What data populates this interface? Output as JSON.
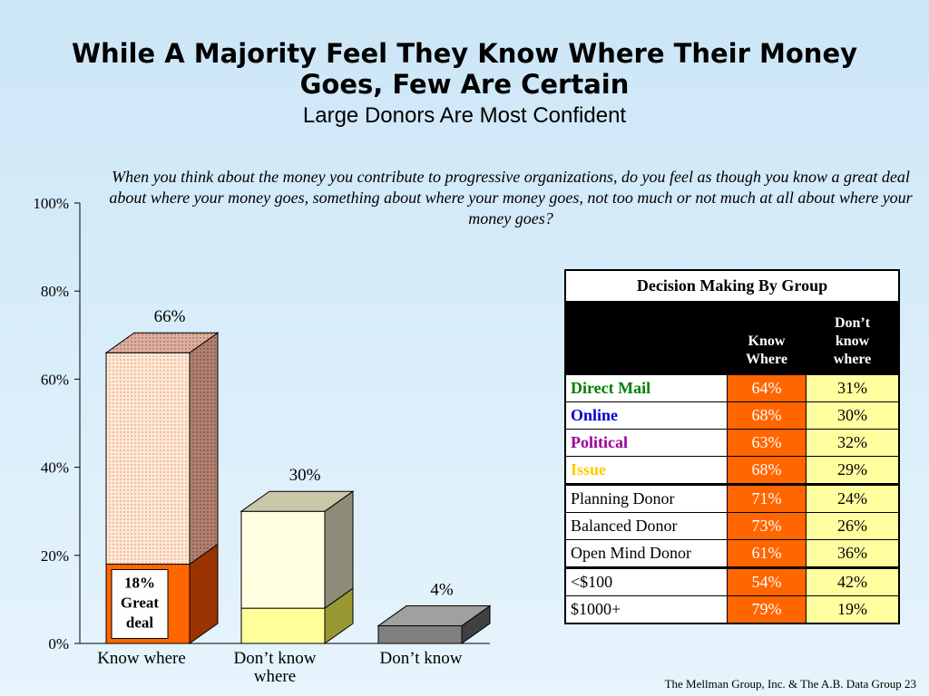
{
  "header": {
    "title_line1": "While A Majority Feel They Know Where Their Money",
    "title_line2": "Goes, Few Are Certain",
    "subtitle": "Large Donors Are Most Confident"
  },
  "question": "When you think about the money you contribute to progressive organizations, do you feel as though you know a great deal about where your money goes, something about where your money goes, not too much or not much at all about where your money goes?",
  "chart_data": {
    "type": "bar",
    "categories": [
      "Know where",
      "Don’t know where",
      "Don’t know"
    ],
    "category_lines": [
      [
        "Know where"
      ],
      [
        "Don’t know",
        "where"
      ],
      [
        "Don’t know"
      ]
    ],
    "total_labels": [
      "66%",
      "30%",
      "4%"
    ],
    "series": [
      {
        "values": [
          18,
          8,
          4
        ],
        "colors": [
          "#ff6600",
          "#ffff99",
          "#808080"
        ],
        "side_colors": [
          "#993300",
          "#999933",
          "#404040"
        ],
        "top_colors": [
          "#ff6600",
          "#ffff99",
          "#a0a0a0"
        ]
      },
      {
        "values": [
          48,
          22,
          0
        ],
        "colors": [
          "#ffe4cc",
          "#ffffe0",
          "#808080"
        ],
        "side_colors": [
          "#b07860",
          "#8c8c78",
          "#404040"
        ],
        "top_colors": [
          "#d8a890",
          "#c8c8a8",
          "#a0a0a0"
        ]
      }
    ],
    "inner_label": [
      "18%",
      "Great",
      "deal"
    ],
    "yticks": [
      "0%",
      "20%",
      "40%",
      "60%",
      "80%",
      "100%"
    ],
    "ylim": [
      0,
      100
    ],
    "grid": false
  },
  "table": {
    "title": "Decision Making By Group",
    "col1": "Know Where",
    "col1_lines": [
      "Know",
      "Where"
    ],
    "col2_lines": [
      "Don’t",
      "know",
      "where"
    ],
    "rows": [
      {
        "label": "Direct Mail",
        "color": "#008000",
        "bold": true,
        "know": "64%",
        "dontknow": "31%",
        "sep": false
      },
      {
        "label": "Online",
        "color": "#0000cc",
        "bold": true,
        "know": "68%",
        "dontknow": "30%",
        "sep": false
      },
      {
        "label": "Political",
        "color": "#990099",
        "bold": true,
        "know": "63%",
        "dontknow": "32%",
        "sep": false
      },
      {
        "label": "Issue",
        "color": "#ffcc00",
        "bold": true,
        "know": "68%",
        "dontknow": "29%",
        "sep": false
      },
      {
        "label": "Planning Donor",
        "color": "#000000",
        "bold": false,
        "know": "71%",
        "dontknow": "24%",
        "sep": true
      },
      {
        "label": "Balanced Donor",
        "color": "#000000",
        "bold": false,
        "know": "73%",
        "dontknow": "26%",
        "sep": false
      },
      {
        "label": "Open Mind Donor",
        "color": "#000000",
        "bold": false,
        "know": "61%",
        "dontknow": "36%",
        "sep": false
      },
      {
        "label": "<$100",
        "color": "#000000",
        "bold": false,
        "know": "54%",
        "dontknow": "42%",
        "sep": true
      },
      {
        "label": "$1000+",
        "color": "#000000",
        "bold": false,
        "know": "79%",
        "dontknow": "19%",
        "sep": false
      }
    ]
  },
  "footer": "The Mellman Group, Inc. & The A.B. Data Group  23"
}
